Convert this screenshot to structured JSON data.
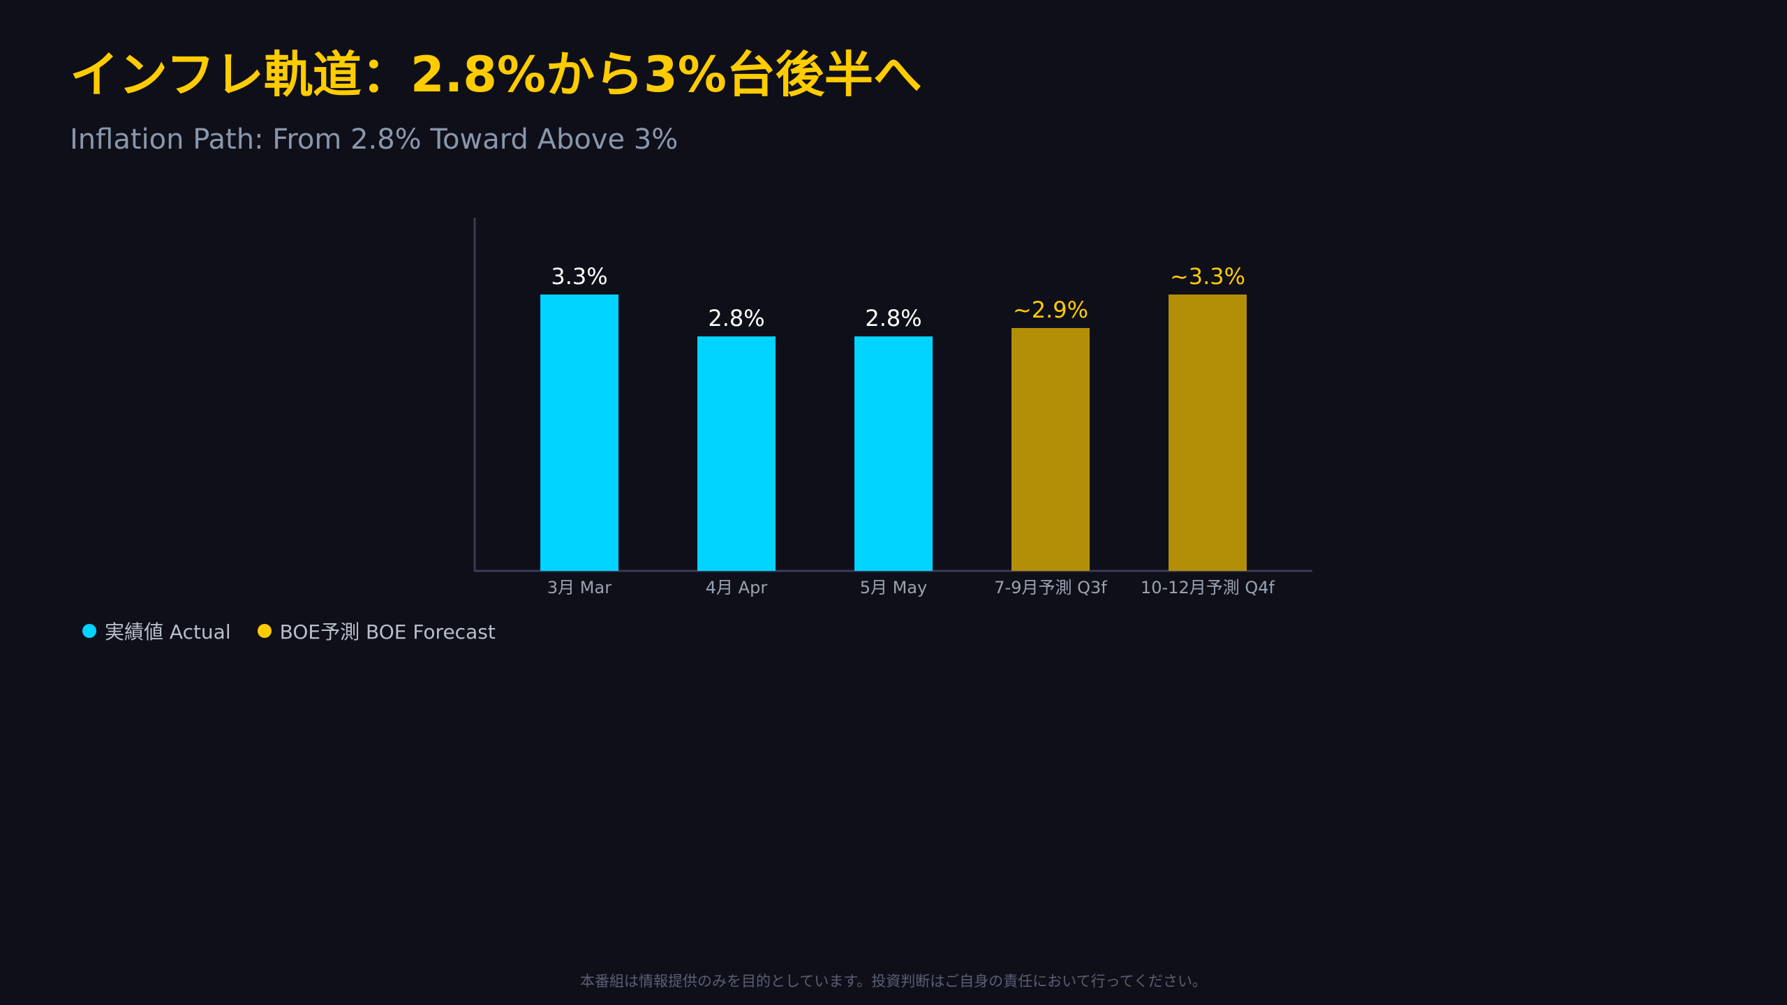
{
  "header": {
    "title": "インフレ軌道：2.8%から3%台後半へ",
    "subtitle": "Inflation Path: From 2.8% Toward Above 3%"
  },
  "colors": {
    "background": "#0f0f1a",
    "title": "#ffcc00",
    "actual": "#00d4ff",
    "forecast": "#b38f08",
    "forecast_label": "#ffcc00",
    "forecast_legend_dot": "#ffcc00",
    "axis": "#3a3b55"
  },
  "chart_data": {
    "type": "bar",
    "categories": [
      "3月 Mar",
      "4月 Apr",
      "5月 May",
      "7-9月予測 Q3f",
      "10-12月予測 Q4f"
    ],
    "series": [
      {
        "name": "実績値 Actual",
        "values": [
          3.3,
          2.8,
          2.8,
          null,
          null
        ],
        "labels": [
          "3.3%",
          "2.8%",
          "2.8%",
          null,
          null
        ]
      },
      {
        "name": "BOE予測 BOE Forecast",
        "values": [
          null,
          null,
          null,
          2.9,
          3.3
        ],
        "labels": [
          null,
          null,
          null,
          "~2.9%",
          "~3.3%"
        ]
      }
    ],
    "ylim": [
      0,
      4.3
    ],
    "grid": false,
    "legend": "bottom-left"
  },
  "footer": {
    "disclaimer": "本番組は情報提供のみを目的としています。投資判断はご自身の責任において行ってください。"
  }
}
